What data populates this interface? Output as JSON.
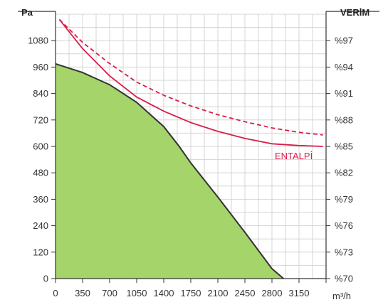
{
  "chart_data": {
    "type": "line",
    "y_left_label": "Pa",
    "y_right_label": "VERİM",
    "x_unit": "m³/h",
    "x_ticks": [
      "0",
      "350",
      "700",
      "1050",
      "1400",
      "1750",
      "2100",
      "2450",
      "2800",
      "3150"
    ],
    "y_left_ticks": [
      "0",
      "120",
      "240",
      "360",
      "480",
      "600",
      "720",
      "840",
      "960",
      "1080"
    ],
    "y_right_ticks": [
      "%70",
      "%73",
      "%76",
      "%79",
      "%82",
      "%85",
      "%88",
      "%91",
      "%94",
      "%97"
    ],
    "xlim": [
      0,
      3500
    ],
    "ylim_left": [
      0,
      1200
    ],
    "ylim_right": [
      70,
      100
    ],
    "grid": true,
    "series": [
      {
        "axis": "left",
        "style": "filled-area",
        "color": "#333333",
        "fill": "#a5d46a",
        "x": [
          0,
          350,
          700,
          1050,
          1400,
          1600,
          1750,
          2100,
          2450,
          2800,
          2950
        ],
        "y": [
          975,
          935,
          880,
          800,
          690,
          600,
          525,
          370,
          210,
          45,
          0
        ]
      },
      {
        "axis": "right",
        "style": "dashed",
        "color": "#d81e49",
        "x": [
          50,
          350,
          700,
          1050,
          1400,
          1750,
          2100,
          2450,
          2800,
          3150,
          3460
        ],
        "y": [
          99.4,
          96.8,
          94.4,
          92.3,
          90.8,
          89.6,
          88.6,
          87.8,
          87.1,
          86.6,
          86.3
        ]
      },
      {
        "name": "ENTALPİ",
        "axis": "right",
        "style": "solid",
        "color": "#d81e49",
        "x": [
          50,
          350,
          700,
          1050,
          1400,
          1750,
          2100,
          2450,
          2800,
          3150,
          3460
        ],
        "y": [
          99.4,
          96.1,
          93.0,
          90.6,
          89.0,
          87.7,
          86.7,
          85.9,
          85.3,
          85.1,
          85.0
        ]
      }
    ],
    "annotations": [
      {
        "text": "ENTALPİ",
        "color": "#d81e49"
      }
    ]
  }
}
